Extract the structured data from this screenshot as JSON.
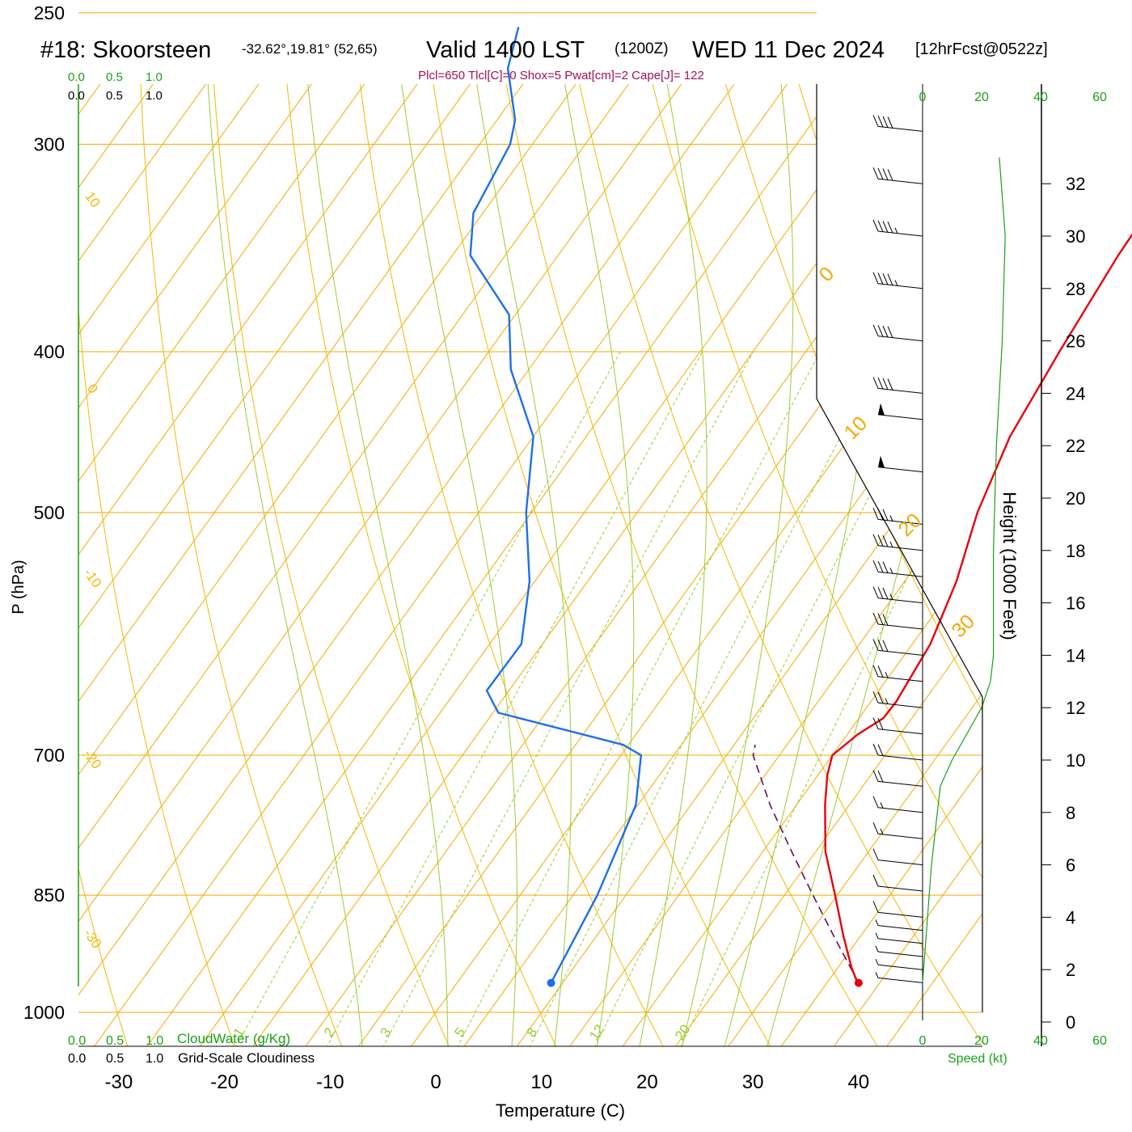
{
  "header": {
    "title_left": "#18: Skoorsteen",
    "location": "-32.62°,19.81° (52,65)",
    "valid": "Valid 1400 LST",
    "utc": "(1200Z)",
    "date": "WED 11 Dec 2024",
    "forecast": "[12hrFcst@0522z]",
    "indices": "Plcl=650 Tlcl[C]=0 Shox=5 Pwat[cm]=2 Cape[J]= 122"
  },
  "colors": {
    "isotherm": "#f5a800",
    "dry_adiabat": "#f5b800",
    "moist_adiabat": "#9acd32",
    "mixing_ratio": "#9acd32",
    "temperature": "#e8000b",
    "dewpoint": "#1e6fe8",
    "parcel": "#6b0b5a",
    "green_text": "#1aa01a",
    "indices_text": "#a0105a"
  },
  "scales": {
    "top_green": [
      "0.0",
      "0.5",
      "1.0"
    ],
    "top_black": [
      "0.0",
      "0.5",
      "1.0"
    ],
    "bottom_green": [
      "0.0",
      "0.5",
      "1.0"
    ],
    "bottom_black": [
      "0.0",
      "0.5",
      "1.0"
    ],
    "cloudwater_label": "CloudWater (g/Kg)",
    "cloudiness_label": "Grid-Scale Cloudiness",
    "speed_label": "Speed (kt)"
  },
  "chart_data": {
    "type": "line",
    "title": "#18: Skoorsteen",
    "xlabel": "Temperature (C)",
    "ylabel": "P (hPa)",
    "y2label": "Height (1000 Feet)",
    "pressure_ticks": [
      250,
      300,
      400,
      500,
      700,
      850,
      1000
    ],
    "temperature_ticks": [
      -30,
      -20,
      -10,
      0,
      10,
      20,
      30,
      40
    ],
    "height_ticks": [
      0,
      2,
      4,
      6,
      8,
      10,
      12,
      14,
      16,
      18,
      20,
      22,
      24,
      26,
      28,
      30,
      32
    ],
    "speed_ticks": [
      "0",
      "20",
      "40",
      "60"
    ],
    "mixing_ratio_labels": [
      "1",
      "2",
      "3",
      "5",
      "8",
      "12",
      "20"
    ],
    "isotherm_labels": [
      "0",
      "10",
      "20",
      "30"
    ],
    "dry_adiabat_labels": [
      "10",
      "0",
      "-10",
      "-20",
      "-30"
    ],
    "temperature_profile": [
      {
        "p": 960,
        "t": 38.0
      },
      {
        "p": 955,
        "t": 37.5
      },
      {
        "p": 940,
        "t": 36.3
      },
      {
        "p": 900,
        "t": 33.4
      },
      {
        "p": 850,
        "t": 29.8
      },
      {
        "p": 800,
        "t": 25.9
      },
      {
        "p": 750,
        "t": 22.7
      },
      {
        "p": 720,
        "t": 20.9
      },
      {
        "p": 700,
        "t": 20.0
      },
      {
        "p": 680,
        "t": 21.0
      },
      {
        "p": 665,
        "t": 22.3
      },
      {
        "p": 650,
        "t": 22.4
      },
      {
        "p": 600,
        "t": 21.7
      },
      {
        "p": 550,
        "t": 19.9
      },
      {
        "p": 500,
        "t": 17.2
      },
      {
        "p": 450,
        "t": 15.1
      },
      {
        "p": 400,
        "t": 14.0
      },
      {
        "p": 350,
        "t": 13.0
      },
      {
        "p": 300,
        "t": 12.5
      },
      {
        "p": 270,
        "t": 12.4
      },
      {
        "p": 255,
        "t": 13.4
      }
    ],
    "dewpoint_profile": [
      {
        "p": 960,
        "t": 8.9
      },
      {
        "p": 850,
        "t": 7.3
      },
      {
        "p": 750,
        "t": 4.8
      },
      {
        "p": 700,
        "t": 1.9
      },
      {
        "p": 690,
        "t": -0.5
      },
      {
        "p": 660,
        "t": -14.5
      },
      {
        "p": 640,
        "t": -17.1
      },
      {
        "p": 600,
        "t": -17.0
      },
      {
        "p": 550,
        "t": -20.5
      },
      {
        "p": 500,
        "t": -25.5
      },
      {
        "p": 450,
        "t": -30.0
      },
      {
        "p": 410,
        "t": -36.7
      },
      {
        "p": 380,
        "t": -40.6
      },
      {
        "p": 350,
        "t": -48.3
      },
      {
        "p": 330,
        "t": -50.9
      },
      {
        "p": 300,
        "t": -52.1
      },
      {
        "p": 290,
        "t": -53.3
      },
      {
        "p": 270,
        "t": -57.5
      },
      {
        "p": 255,
        "t": -59.3
      }
    ],
    "parcel_profile": [
      {
        "p": 960,
        "t": 38.0
      },
      {
        "p": 900,
        "t": 32.5
      },
      {
        "p": 850,
        "t": 27.7
      },
      {
        "p": 800,
        "t": 22.7
      },
      {
        "p": 750,
        "t": 17.5
      },
      {
        "p": 700,
        "t": 12.5
      },
      {
        "p": 690,
        "t": 12.0
      }
    ],
    "wind_speed_profile": [
      {
        "h": 1.5,
        "kt": 0
      },
      {
        "h": 3,
        "kt": 1
      },
      {
        "h": 6,
        "kt": 3
      },
      {
        "h": 9,
        "kt": 6
      },
      {
        "h": 10,
        "kt": 10
      },
      {
        "h": 11,
        "kt": 15
      },
      {
        "h": 12,
        "kt": 20
      },
      {
        "h": 13,
        "kt": 23
      },
      {
        "h": 14,
        "kt": 24
      },
      {
        "h": 18,
        "kt": 24
      },
      {
        "h": 22,
        "kt": 25
      },
      {
        "h": 26,
        "kt": 27
      },
      {
        "h": 30,
        "kt": 28
      },
      {
        "h": 33,
        "kt": 26
      }
    ],
    "wind_barbs_kt": [
      {
        "h": 1.5,
        "kt": 5
      },
      {
        "h": 2,
        "kt": 5
      },
      {
        "h": 2.5,
        "kt": 5
      },
      {
        "h": 3,
        "kt": 5
      },
      {
        "h": 3.5,
        "kt": 5
      },
      {
        "h": 4,
        "kt": 10
      },
      {
        "h": 5,
        "kt": 10
      },
      {
        "h": 6,
        "kt": 10
      },
      {
        "h": 7,
        "kt": 15
      },
      {
        "h": 8,
        "kt": 15
      },
      {
        "h": 9,
        "kt": 20
      },
      {
        "h": 10,
        "kt": 20
      },
      {
        "h": 11,
        "kt": 20
      },
      {
        "h": 12,
        "kt": 25
      },
      {
        "h": 13,
        "kt": 25
      },
      {
        "h": 14,
        "kt": 30
      },
      {
        "h": 15,
        "kt": 30
      },
      {
        "h": 16,
        "kt": 35
      },
      {
        "h": 17,
        "kt": 35
      },
      {
        "h": 18,
        "kt": 35
      },
      {
        "h": 19,
        "kt": 35
      },
      {
        "h": 21,
        "kt": 50
      },
      {
        "h": 23,
        "kt": 50
      },
      {
        "h": 24,
        "kt": 40
      },
      {
        "h": 26,
        "kt": 40
      },
      {
        "h": 28,
        "kt": 45
      },
      {
        "h": 30,
        "kt": 45
      },
      {
        "h": 32,
        "kt": 40
      },
      {
        "h": 34,
        "kt": 40
      }
    ]
  }
}
